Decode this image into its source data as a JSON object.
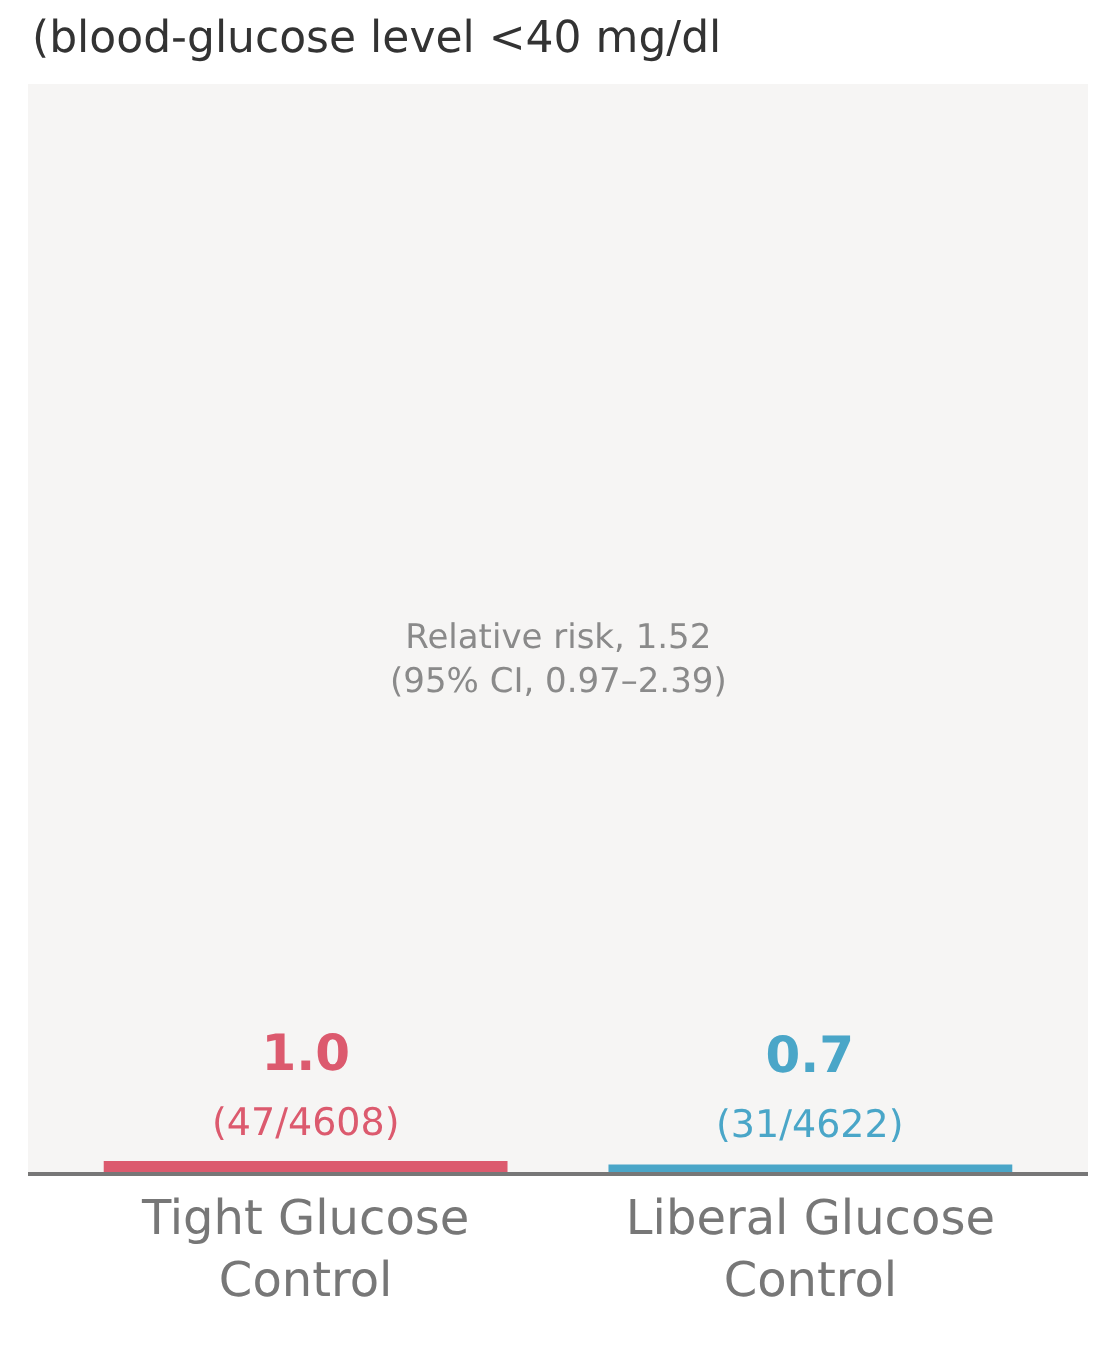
{
  "chart_data": {
    "type": "bar",
    "title": "(blood-glucose level <40 mg/dl",
    "categories": [
      "Tight Glucose\nControl",
      "Liberal Glucose\nControl"
    ],
    "values": [
      1.0,
      0.7
    ],
    "colors": [
      "#dc5a6e",
      "#4aa6c8"
    ],
    "value_labels": [
      "1.0\n(47/4608)",
      "0.7\n(31/4622)"
    ],
    "ylim": [
      0,
      100
    ],
    "annotations": [
      "Relative risk, 1.52\n(95% CI, 0.97–2.39)"
    ],
    "grid": false
  }
}
